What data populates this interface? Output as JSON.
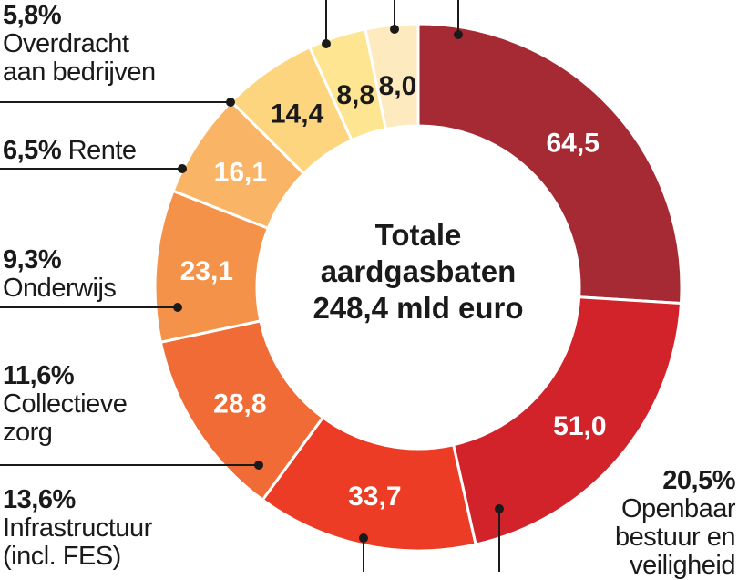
{
  "chart_data": {
    "type": "pie",
    "donut": true,
    "center_label": [
      "Totale",
      "aardgasbaten",
      "248,4 mld euro"
    ],
    "slices": [
      {
        "value": 64.5,
        "value_label": "64,5",
        "color": "#a52a33",
        "label_color": "#ffffff",
        "percent": "",
        "name": ""
      },
      {
        "value": 51.0,
        "value_label": "51,0",
        "color": "#d2232b",
        "label_color": "#ffffff",
        "percent": "20,5%",
        "name": "Openbaar bestuur en veiligheid"
      },
      {
        "value": 33.7,
        "value_label": "33,7",
        "color": "#ec3c25",
        "label_color": "#ffffff",
        "percent": "13,6%",
        "name": "Infrastructuur (incl. FES)"
      },
      {
        "value": 28.8,
        "value_label": "28,8",
        "color": "#f06b35",
        "label_color": "#ffffff",
        "percent": "11,6%",
        "name": "Collectieve zorg"
      },
      {
        "value": 23.1,
        "value_label": "23,1",
        "color": "#f5924a",
        "label_color": "#ffffff",
        "percent": "9,3%",
        "name": "Onderwijs"
      },
      {
        "value": 16.1,
        "value_label": "16,1",
        "color": "#f9b466",
        "label_color": "#ffffff",
        "percent": "6,5%",
        "name": "Rente"
      },
      {
        "value": 14.4,
        "value_label": "14,4",
        "color": "#fdd57f",
        "label_color": "#1a1a1a",
        "percent": "5,8%",
        "name": "Overdracht aan bedrijven"
      },
      {
        "value": 8.8,
        "value_label": "8,8",
        "color": "#fee591",
        "label_color": "#1a1a1a",
        "percent": "",
        "name": ""
      },
      {
        "value": 8.0,
        "value_label": "8,0",
        "color": "#feeabf",
        "label_color": "#1a1a1a",
        "percent": "",
        "name": ""
      }
    ],
    "callouts": {
      "overdracht": {
        "percent": "5,8%",
        "line1": "Overdracht",
        "line2": "aan bedrijven"
      },
      "rente": {
        "percent": "6,5%",
        "line1": "Rente"
      },
      "onderwijs": {
        "percent": "9,3%",
        "line1": "Onderwijs"
      },
      "zorg": {
        "percent": "11,6%",
        "line1": "Collectieve",
        "line2": "zorg"
      },
      "infra": {
        "percent": "13,6%",
        "line1": "Infrastructuur",
        "line2": "(incl. FES)"
      },
      "bestuur": {
        "percent": "20,5%",
        "line1": "Openbaar",
        "line2": "bestuur en",
        "line3": "veiligheid"
      }
    }
  }
}
